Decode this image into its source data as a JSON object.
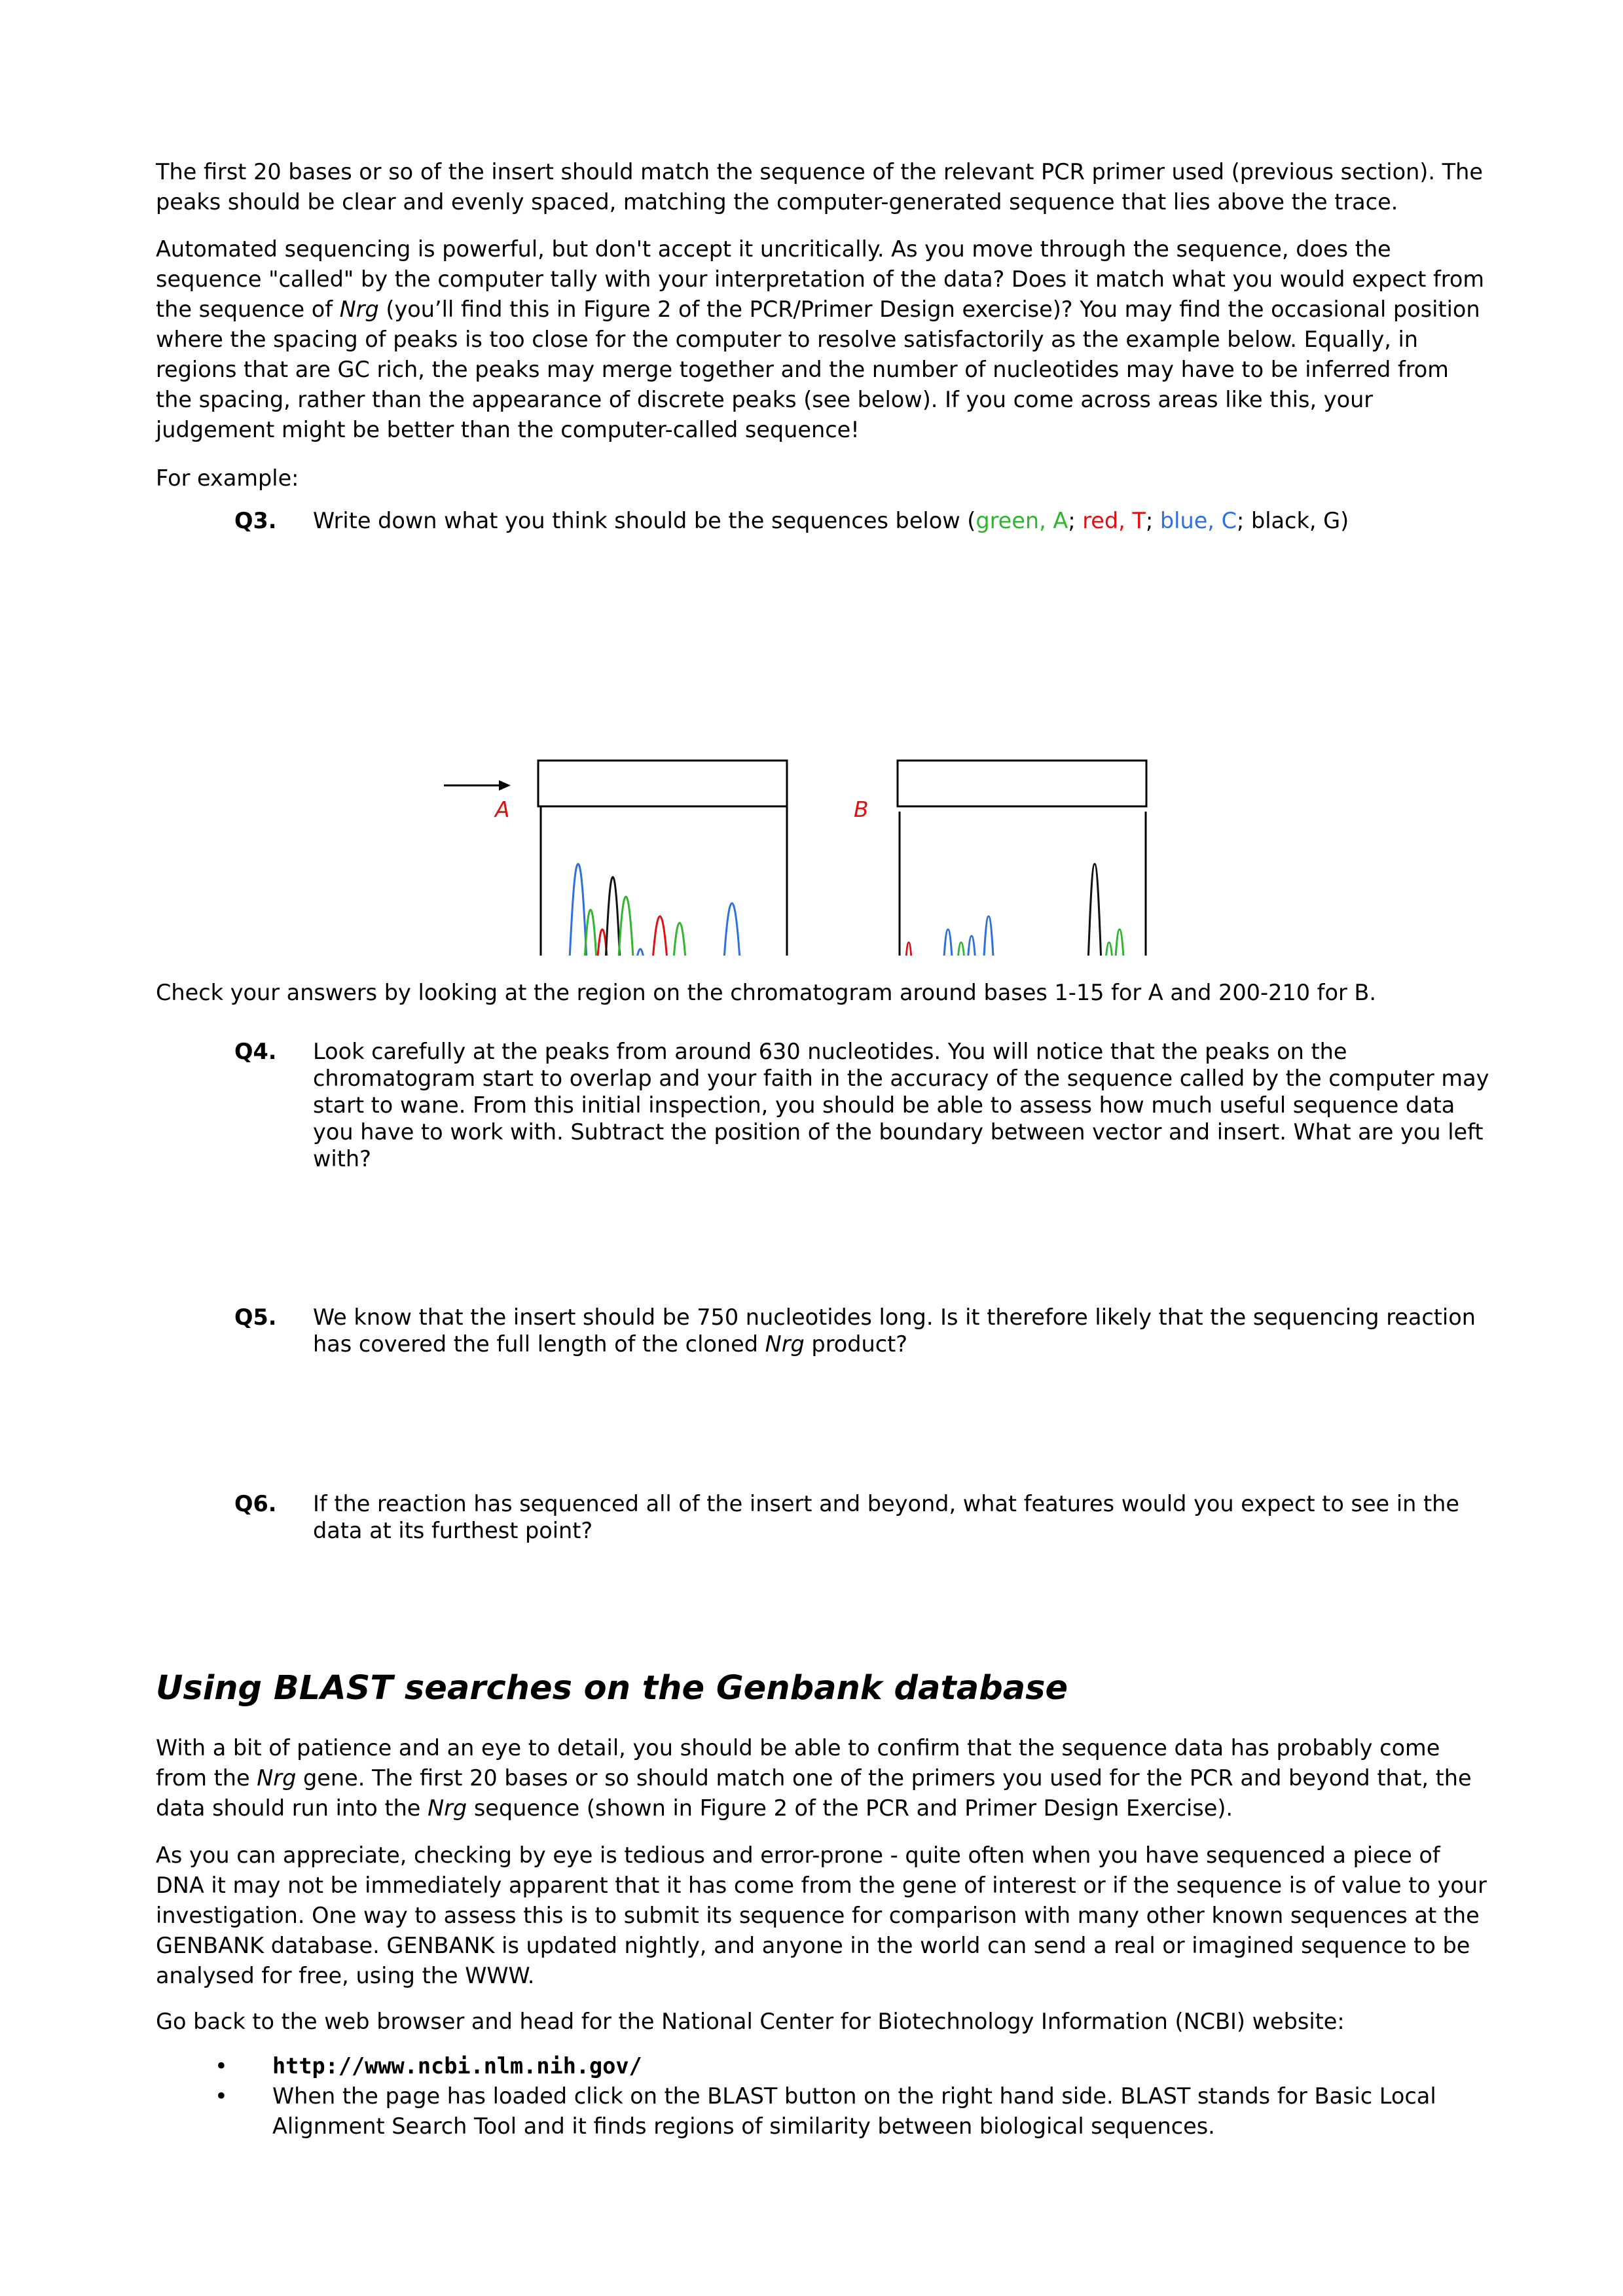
{
  "intro": {
    "p1": "The first 20 bases or so of the insert should match the sequence of the relevant PCR primer used (previous section). The peaks should be clear and evenly spaced, matching the computer-generated sequence that lies above the trace.",
    "p2_before": "Automated sequencing is powerful, but don't accept it uncritically. As you move through the sequence, does the sequence \"called\" by the computer tally with your interpretation of the data? Does it match what you would expect from the sequence of ",
    "p2_italic": "Nrg",
    "p2_after": " (you’ll find this in Figure 2 of the PCR/Primer Design exercise)? You may find the occasional position where the spacing of peaks is too close for the computer to resolve satisfactorily as the example below. Equally, in regions that are GC rich, the peaks may merge together and the number of nucleotides may have to be inferred from the spacing, rather than the appearance of discrete peaks (see below). If you come across areas like this, your judgement might be better than the computer-called sequence!",
    "p3": "For example:"
  },
  "q3": {
    "number": "Q3.",
    "text": "Write down what you think should be the sequences below (",
    "legend": [
      {
        "label": "green, A",
        "sep": "; "
      },
      {
        "label": "red, T",
        "sep": "; "
      },
      {
        "label": "blue, C",
        "sep": "; "
      },
      {
        "label": "black, G",
        "sep": ")"
      }
    ]
  },
  "figure": {
    "label_a": "A",
    "label_b": "B",
    "colors": {
      "a": "#2fb52f",
      "t": "#e01010",
      "c": "#2f6fdf",
      "g": "#111111",
      "label": "#e01010"
    }
  },
  "check": "Check your answers by looking at the region on the chromatogram around bases 1-15 for A and 200-210 for B.",
  "q4": {
    "number": "Q4.",
    "text": "Look carefully at the peaks from around 630 nucleotides. You will notice that the peaks on the chromatogram start to overlap and your faith in the accuracy of the sequence called by the computer may start to wane. From this initial inspection, you should be able to assess how much useful sequence data you have to work with. Subtract the position of the boundary between vector and insert. What are you left with?"
  },
  "q5": {
    "number": "Q5.",
    "text_before": "We know that the insert should be 750 nucleotides long. Is it therefore likely that the sequencing reaction has covered the full length of the cloned ",
    "text_italic": "Nrg",
    "text_after": " product?"
  },
  "q6": {
    "number": "Q6.",
    "text": "If the reaction has sequenced all of the insert and beyond, what features would you expect to see in the data at its furthest point?"
  },
  "blast": {
    "heading": "Using BLAST searches on the Genbank database",
    "p1_a": "With a bit of patience and an eye to detail, you should be able to confirm that the sequence data has probably come from the ",
    "p1_b": "Nrg",
    "p1_c": " gene. The first 20 bases or so should match one of the primers you used for the PCR and beyond that, the data should run into the ",
    "p1_d": "Nrg",
    "p1_e": " sequence (shown in Figure 2 of the PCR and Primer Design Exercise).",
    "p2": "As you can appreciate, checking by eye is tedious and error-prone - quite often when you have sequenced a piece of DNA it may not be immediately apparent that it has come from the gene of interest or if the sequence is of value to your investigation. One way to assess this is to submit its sequence for comparison with many other known sequences at the GENBANK database. GENBANK is updated nightly, and anyone in the world can send a real or imagined sequence to be analysed for free, using the WWW.",
    "p3": "Go back to the web browser and head for the National Center for Biotechnology Information (NCBI) website:",
    "bullets": [
      "http://www.ncbi.nlm.nih.gov/",
      "When the page has loaded click on the BLAST button on the right hand side. BLAST stands for Basic Local Alignment Search Tool and it finds regions of similarity between biological sequences."
    ],
    "bullet_glyph": "•"
  }
}
